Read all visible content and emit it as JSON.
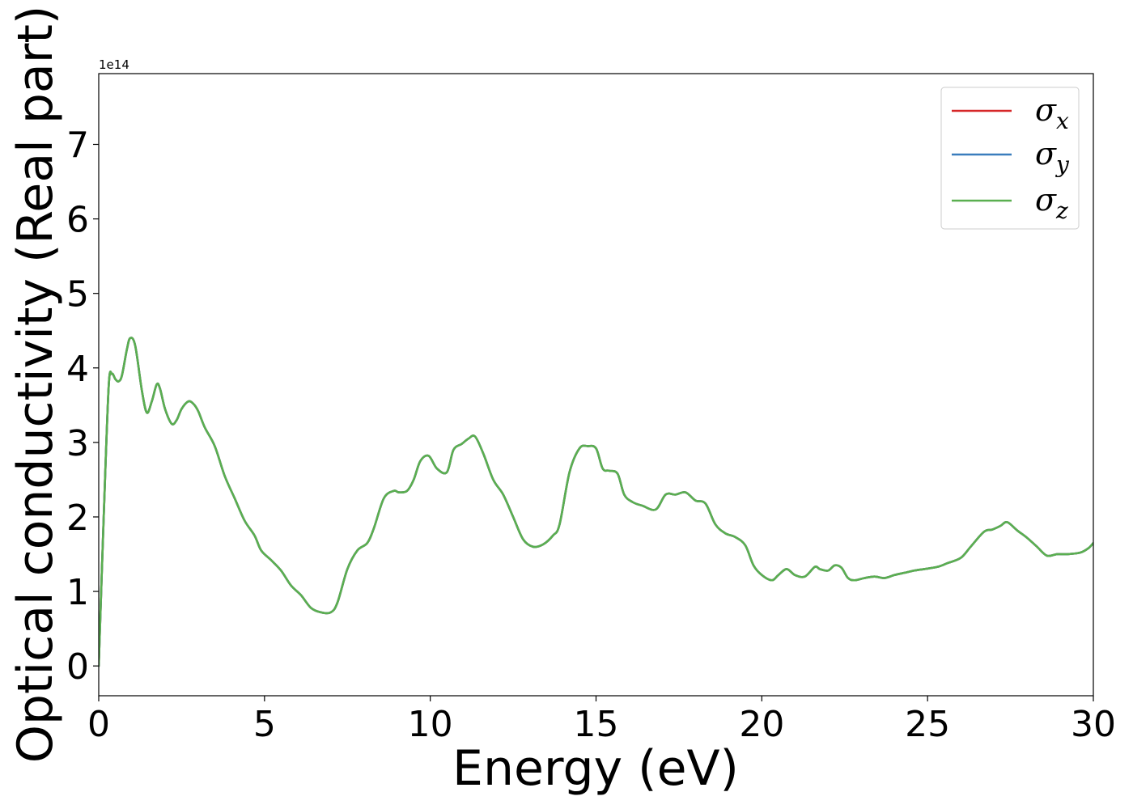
{
  "chart_data": {
    "type": "line",
    "xlabel": "Energy (eV)",
    "ylabel": "Optical conductivity (Real part)",
    "y_offset_label": "1e14",
    "xlim": [
      0,
      30
    ],
    "ylim": [
      -0.4,
      7.95
    ],
    "x_ticks": [
      0,
      5,
      10,
      15,
      20,
      25,
      30
    ],
    "x_tick_labels": [
      "0",
      "5",
      "10",
      "15",
      "20",
      "25",
      "30"
    ],
    "y_ticks": [
      0,
      1,
      2,
      3,
      4,
      5,
      6,
      7
    ],
    "y_tick_labels": [
      "0",
      "1",
      "2",
      "3",
      "4",
      "5",
      "6",
      "7"
    ],
    "grid": false,
    "legend_position": "top-right",
    "x": [
      0,
      0.15,
      0.3,
      0.4,
      0.5,
      0.6,
      0.7,
      0.85,
      0.95,
      1.1,
      1.3,
      1.45,
      1.6,
      1.75,
      1.85,
      2.0,
      2.2,
      2.35,
      2.5,
      2.7,
      2.85,
      3.0,
      3.2,
      3.5,
      3.8,
      4.1,
      4.4,
      4.7,
      4.9,
      5.2,
      5.5,
      5.8,
      6.1,
      6.4,
      6.7,
      7.0,
      7.2,
      7.5,
      7.8,
      8.1,
      8.3,
      8.6,
      8.9,
      9.05,
      9.3,
      9.5,
      9.7,
      9.95,
      10.2,
      10.5,
      10.7,
      10.95,
      11.15,
      11.35,
      11.6,
      11.9,
      12.2,
      12.5,
      12.8,
      13.1,
      13.4,
      13.7,
      13.9,
      14.2,
      14.5,
      14.75,
      15.0,
      15.2,
      15.4,
      15.65,
      15.85,
      16.1,
      16.4,
      16.8,
      17.1,
      17.4,
      17.7,
      18.0,
      18.3,
      18.6,
      18.9,
      19.2,
      19.5,
      19.75,
      20.0,
      20.3,
      20.5,
      20.75,
      21.0,
      21.3,
      21.6,
      21.75,
      22.0,
      22.2,
      22.4,
      22.6,
      22.8,
      23.1,
      23.4,
      23.7,
      24.0,
      24.3,
      24.6,
      24.9,
      25.3,
      25.6,
      26.0,
      26.3,
      26.7,
      26.95,
      27.2,
      27.4,
      27.7,
      28.0,
      28.3,
      28.6,
      28.9,
      29.2,
      29.6,
      29.85,
      30.0
    ],
    "series": [
      {
        "name": "σx",
        "label_base": "σ",
        "label_sub": "x",
        "color": "#d62728",
        "values": [
          0.0,
          2.0,
          3.75,
          3.92,
          3.85,
          3.82,
          3.9,
          4.25,
          4.4,
          4.3,
          3.7,
          3.4,
          3.55,
          3.78,
          3.72,
          3.45,
          3.25,
          3.3,
          3.45,
          3.55,
          3.52,
          3.42,
          3.2,
          2.95,
          2.55,
          2.25,
          1.95,
          1.75,
          1.55,
          1.42,
          1.28,
          1.08,
          0.95,
          0.78,
          0.72,
          0.72,
          0.85,
          1.3,
          1.55,
          1.65,
          1.85,
          2.25,
          2.35,
          2.33,
          2.35,
          2.5,
          2.75,
          2.82,
          2.65,
          2.6,
          2.9,
          2.98,
          3.05,
          3.08,
          2.85,
          2.5,
          2.3,
          2.0,
          1.7,
          1.6,
          1.63,
          1.75,
          1.9,
          2.6,
          2.92,
          2.95,
          2.92,
          2.65,
          2.62,
          2.58,
          2.3,
          2.2,
          2.15,
          2.1,
          2.3,
          2.3,
          2.33,
          2.22,
          2.18,
          1.9,
          1.78,
          1.73,
          1.62,
          1.35,
          1.22,
          1.15,
          1.22,
          1.3,
          1.22,
          1.2,
          1.33,
          1.3,
          1.28,
          1.35,
          1.32,
          1.18,
          1.15,
          1.18,
          1.2,
          1.18,
          1.22,
          1.25,
          1.28,
          1.3,
          1.33,
          1.38,
          1.45,
          1.6,
          1.8,
          1.83,
          1.88,
          1.93,
          1.82,
          1.72,
          1.6,
          1.48,
          1.5,
          1.5,
          1.52,
          1.58,
          1.65
        ]
      },
      {
        "name": "σy",
        "label_base": "σ",
        "label_sub": "y",
        "color": "#3a7dbd",
        "values": [
          0.0,
          2.0,
          3.75,
          3.92,
          3.85,
          3.82,
          3.9,
          4.25,
          4.4,
          4.3,
          3.7,
          3.4,
          3.55,
          3.78,
          3.72,
          3.45,
          3.25,
          3.3,
          3.45,
          3.55,
          3.52,
          3.42,
          3.2,
          2.95,
          2.55,
          2.25,
          1.95,
          1.75,
          1.55,
          1.42,
          1.28,
          1.08,
          0.95,
          0.78,
          0.72,
          0.72,
          0.85,
          1.3,
          1.55,
          1.65,
          1.85,
          2.25,
          2.35,
          2.33,
          2.35,
          2.5,
          2.75,
          2.82,
          2.65,
          2.6,
          2.9,
          2.98,
          3.05,
          3.08,
          2.85,
          2.5,
          2.3,
          2.0,
          1.7,
          1.6,
          1.63,
          1.75,
          1.9,
          2.6,
          2.92,
          2.95,
          2.92,
          2.65,
          2.62,
          2.58,
          2.3,
          2.2,
          2.15,
          2.1,
          2.3,
          2.3,
          2.33,
          2.22,
          2.18,
          1.9,
          1.78,
          1.73,
          1.62,
          1.35,
          1.22,
          1.15,
          1.22,
          1.3,
          1.22,
          1.2,
          1.33,
          1.3,
          1.28,
          1.35,
          1.32,
          1.18,
          1.15,
          1.18,
          1.2,
          1.18,
          1.22,
          1.25,
          1.28,
          1.3,
          1.33,
          1.38,
          1.45,
          1.6,
          1.8,
          1.83,
          1.88,
          1.93,
          1.82,
          1.72,
          1.6,
          1.48,
          1.5,
          1.5,
          1.52,
          1.58,
          1.65
        ]
      },
      {
        "name": "σz",
        "label_base": "σ",
        "label_sub": "z",
        "color": "#5aaf50",
        "values": [
          0.0,
          2.0,
          3.75,
          3.92,
          3.85,
          3.82,
          3.9,
          4.25,
          4.4,
          4.3,
          3.7,
          3.4,
          3.55,
          3.78,
          3.72,
          3.45,
          3.25,
          3.3,
          3.45,
          3.55,
          3.52,
          3.42,
          3.2,
          2.95,
          2.55,
          2.25,
          1.95,
          1.75,
          1.55,
          1.42,
          1.28,
          1.08,
          0.95,
          0.78,
          0.72,
          0.72,
          0.85,
          1.3,
          1.55,
          1.65,
          1.85,
          2.25,
          2.35,
          2.33,
          2.35,
          2.5,
          2.75,
          2.82,
          2.65,
          2.6,
          2.9,
          2.98,
          3.05,
          3.08,
          2.85,
          2.5,
          2.3,
          2.0,
          1.7,
          1.6,
          1.63,
          1.75,
          1.9,
          2.6,
          2.92,
          2.95,
          2.92,
          2.65,
          2.62,
          2.58,
          2.3,
          2.2,
          2.15,
          2.1,
          2.3,
          2.3,
          2.33,
          2.22,
          2.18,
          1.9,
          1.78,
          1.73,
          1.62,
          1.35,
          1.22,
          1.15,
          1.22,
          1.3,
          1.22,
          1.2,
          1.33,
          1.3,
          1.28,
          1.35,
          1.32,
          1.18,
          1.15,
          1.18,
          1.2,
          1.18,
          1.22,
          1.25,
          1.28,
          1.3,
          1.33,
          1.38,
          1.45,
          1.6,
          1.8,
          1.83,
          1.88,
          1.93,
          1.82,
          1.72,
          1.6,
          1.48,
          1.5,
          1.5,
          1.52,
          1.58,
          1.65
        ]
      }
    ]
  }
}
